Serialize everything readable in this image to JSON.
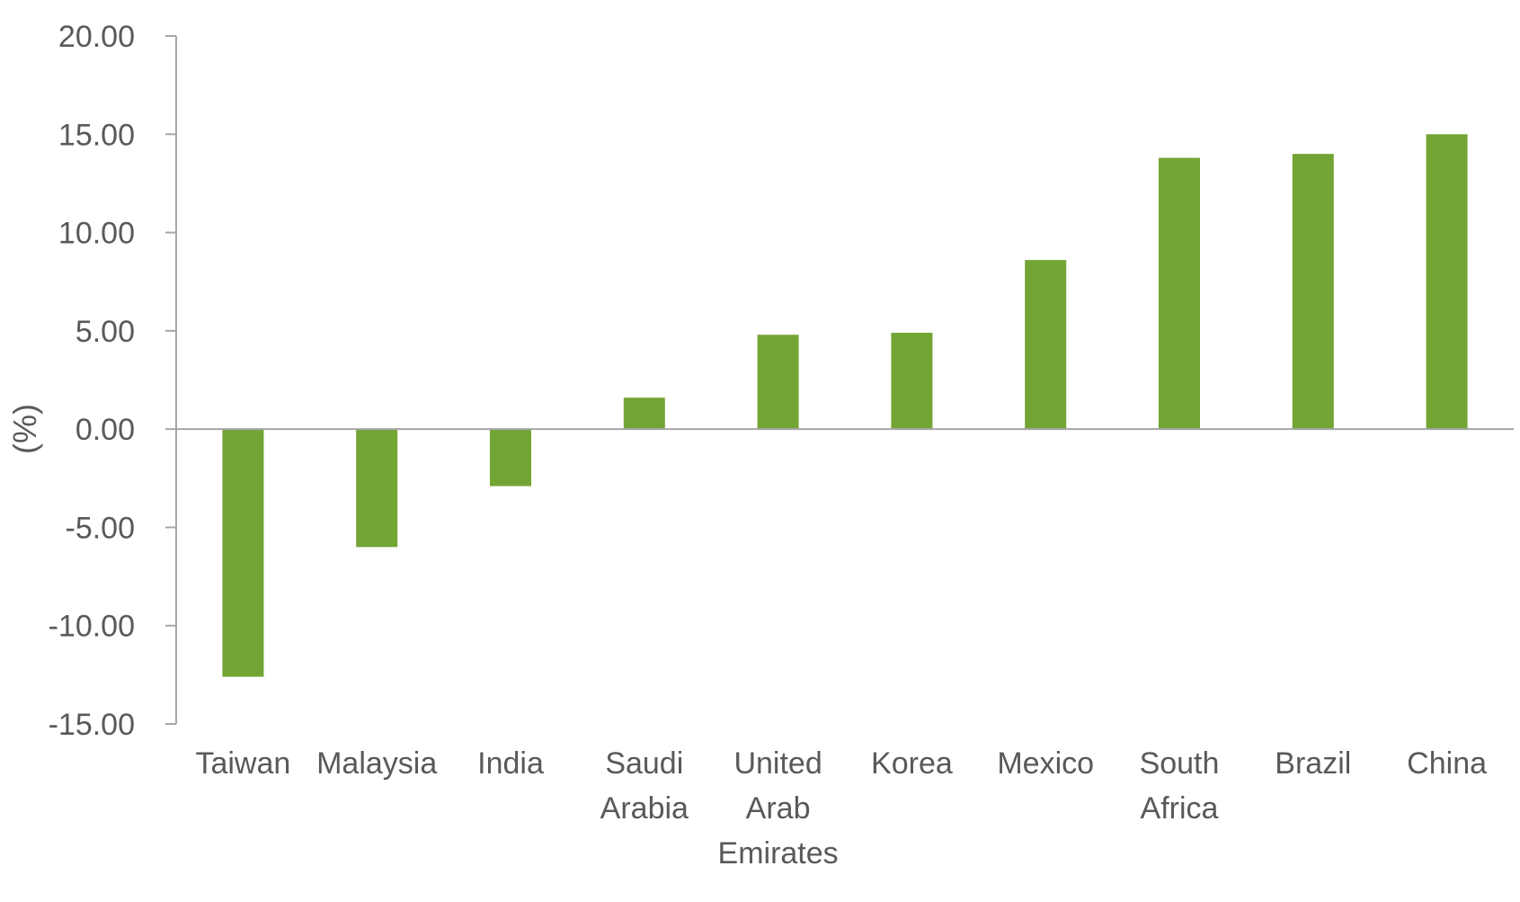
{
  "chart_data": {
    "type": "bar",
    "title": "",
    "xlabel": "",
    "ylabel": "(%)",
    "categories": [
      "Taiwan",
      "Malaysia",
      "India",
      "Saudi Arabia",
      "United Arab Emirates",
      "Korea",
      "Mexico",
      "South Africa",
      "Brazil",
      "China"
    ],
    "category_lines": [
      [
        "Taiwan"
      ],
      [
        "Malaysia"
      ],
      [
        "India"
      ],
      [
        "Saudi",
        "Arabia"
      ],
      [
        "United",
        "Arab",
        "Emirates"
      ],
      [
        "Korea"
      ],
      [
        "Mexico"
      ],
      [
        "South",
        "Africa"
      ],
      [
        "Brazil"
      ],
      [
        "China"
      ]
    ],
    "values": [
      -12.6,
      -6.0,
      -2.9,
      1.6,
      4.8,
      4.9,
      8.6,
      13.8,
      14.0,
      15.0
    ],
    "ylim": [
      -15,
      20
    ],
    "yticks": [
      "20.00",
      "15.00",
      "10.00",
      "5.00",
      "0.00",
      "-5.00",
      "-10.00",
      "-15.00"
    ],
    "ytick_values": [
      20,
      15,
      10,
      5,
      0,
      -5,
      -10,
      -15
    ],
    "grid": false,
    "legend": "none",
    "bar_color": "#72A533",
    "axis_color": "#A6A6A6",
    "text_color": "#595959"
  }
}
